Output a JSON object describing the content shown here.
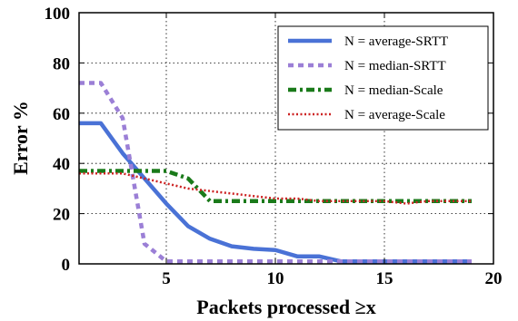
{
  "chart_data": {
    "type": "line",
    "title": "",
    "xlabel": "Packets processed ≥x",
    "ylabel": "Error %",
    "xlim": [
      1,
      20
    ],
    "ylim": [
      0,
      100
    ],
    "xticks": [
      5,
      10,
      15,
      20
    ],
    "xtick_labels": [
      "5",
      "10",
      "15",
      "20"
    ],
    "yticks": [
      0,
      20,
      40,
      60,
      80,
      100
    ],
    "ytick_labels": [
      "0",
      "20",
      "40",
      "60",
      "80",
      "100"
    ],
    "grid": true,
    "legend_position": "top-right",
    "x": [
      1,
      2,
      3,
      4,
      5,
      6,
      7,
      8,
      9,
      10,
      11,
      12,
      13,
      14,
      15,
      16,
      17,
      18,
      19
    ],
    "series": [
      {
        "name": "N = average-SRTT",
        "color": "#4a72d6",
        "style": "solid",
        "values": [
          56,
          56,
          44,
          34,
          24,
          15,
          10,
          7,
          6,
          5.5,
          3,
          3,
          1,
          1,
          1,
          1,
          1,
          1,
          1
        ]
      },
      {
        "name": "N = median-SRTT",
        "color": "#9b7fd6",
        "style": "dashed",
        "values": [
          72,
          72,
          58,
          8,
          1,
          1,
          1,
          1,
          1,
          1,
          1,
          1,
          1,
          1,
          1,
          1,
          1,
          1,
          1
        ]
      },
      {
        "name": "N = median-Scale",
        "color": "#1a7a1a",
        "style": "dashdot",
        "values": [
          37,
          37,
          37,
          37,
          37,
          34,
          25,
          25,
          25,
          25,
          25,
          25,
          25,
          25,
          25,
          25,
          25,
          25,
          25
        ]
      },
      {
        "name": "N = average-Scale",
        "color": "#cc2222",
        "style": "dotted",
        "values": [
          36,
          36,
          36,
          34,
          32,
          30,
          29,
          28,
          27,
          26,
          26,
          25,
          25,
          25,
          25,
          24,
          25,
          25,
          25
        ]
      }
    ]
  }
}
